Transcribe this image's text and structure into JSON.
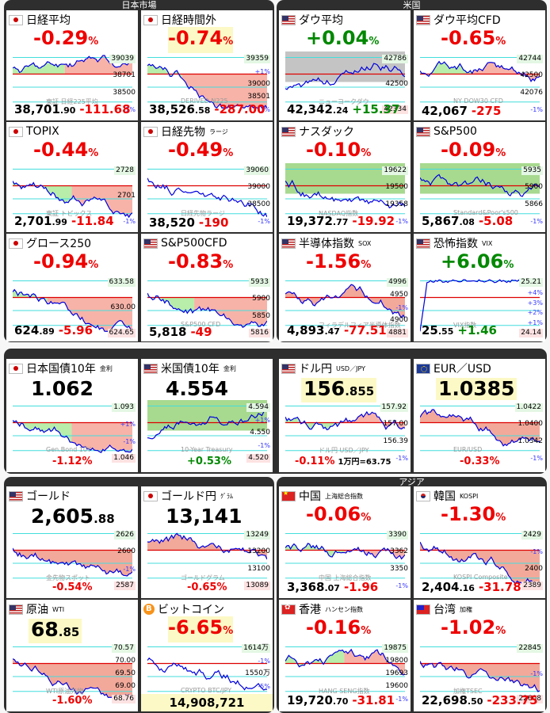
{
  "groups": [
    {
      "id": "japan-market",
      "title": "日本市場"
    },
    {
      "id": "us",
      "title": "米国"
    },
    {
      "id": "rates-fx",
      "title": ""
    },
    {
      "id": "commodities",
      "title": ""
    },
    {
      "id": "asia",
      "title": "アジア"
    }
  ],
  "tiles": {
    "nikkei": {
      "name": "日経平均",
      "flag": "jp",
      "pct": "-0.29",
      "price_main": "38,701",
      "price_dec": ".90",
      "change": "-111.68",
      "ticks": [
        "39039",
        "38701",
        "38500",
        "-1%"
      ],
      "watermark": "東証 日経225平均"
    },
    "nikkei_night": {
      "name": "日経時間外",
      "flag": "jp",
      "pct": "-0.74",
      "price_main": "38,526",
      "price_dec": ".58",
      "change": "-287.00",
      "ticks": [
        "39359",
        "+1%",
        "39000",
        "38501",
        "-1%"
      ],
      "watermark": "DERIVED N225"
    },
    "dow": {
      "name": "ダウ平均",
      "flag": "us",
      "pct": "+0.04",
      "price_main": "42,342",
      "price_dec": ".24",
      "change": "+15.37",
      "ticks": [
        "42786",
        "42500",
        "42334"
      ],
      "watermark": "ニューヨークダウ"
    },
    "dow_cfd": {
      "name": "ダウ平均CFD",
      "flag": "us",
      "pct": "-0.65",
      "price_main": "42,067",
      "price_dec": "",
      "change": "-275",
      "ticks": [
        "42744",
        "42500",
        "42076",
        "-1%"
      ],
      "watermark": "NY DOW30 CFD"
    },
    "topix": {
      "name": "TOPIX",
      "flag": "jp",
      "pct": "-0.44",
      "price_main": "2,701",
      "price_dec": ".99",
      "change": "-11.84",
      "ticks": [
        "2728",
        "2701",
        "-1%"
      ],
      "watermark": "東証 トピックス"
    },
    "nikkei_futures": {
      "name": "日経先物",
      "sub": "ラージ",
      "flag": "jp",
      "pct": "-0.49",
      "price_main": "38,520",
      "price_dec": "",
      "change": "-190",
      "ticks": [
        "39060",
        "39000",
        "38500",
        "-1%"
      ],
      "watermark": "日経先物ラージ"
    },
    "nasdaq": {
      "name": "ナスダック",
      "flag": "us",
      "pct": "-0.10",
      "price_main": "19,372",
      "price_dec": ".77",
      "change": "-19.92",
      "ticks": [
        "19622",
        "19500",
        "19358",
        "-1%"
      ],
      "watermark": "NASDAQ指数"
    },
    "sp500": {
      "name": "S&P500",
      "flag": "us",
      "pct": "-0.09",
      "price_main": "5,867",
      "price_dec": ".08",
      "change": "-5.08",
      "ticks": [
        "5935",
        "5900",
        "5866",
        "-1%"
      ],
      "watermark": "Standard&Poor's500"
    },
    "growth250": {
      "name": "グロース250",
      "flag": "jp",
      "pct": "-0.94",
      "price_main": "624",
      "price_dec": ".89",
      "change": "-5.96",
      "ticks": [
        "633.58",
        "630.00",
        "624.65"
      ],
      "watermark": ""
    },
    "sp500_cfd": {
      "name": "S&P500CFD",
      "flag": "us",
      "pct": "-0.83",
      "price_main": "5,818",
      "price_dec": "",
      "change": "-49",
      "ticks": [
        "5933",
        "5900",
        "5850",
        "5816"
      ],
      "watermark": "S&P500 CFD"
    },
    "sox": {
      "name": "半導体指数",
      "sub": "SOX",
      "flag": "us",
      "pct": "-1.56",
      "price_main": "4,893",
      "price_dec": ".47",
      "change": "-77.51",
      "ticks": [
        "4996",
        "4950",
        "-1%",
        "4900",
        "4881"
      ],
      "watermark": "フィラデルフィア半導体指数"
    },
    "vix": {
      "name": "恐怖指数",
      "sub": "VIX",
      "flag": "us",
      "pct": "+6.06",
      "price_main": "25",
      "price_dec": ".55",
      "change": "+1.46",
      "ticks": [
        "25.21",
        "+4%",
        "+3%",
        "+2%",
        "+1%",
        "24.14"
      ],
      "watermark": "VIX指数"
    },
    "jgb10": {
      "name": "日本国債10年",
      "sub": "金利",
      "flag": "jp",
      "big": "1.062",
      "sub_pct": "-1.12",
      "ticks": [
        "1.093",
        "+1%",
        "-1%",
        "1.046"
      ],
      "watermark": "Gen.Bond 10Y"
    },
    "ust10": {
      "name": "米国債10年",
      "sub": "金利",
      "flag": "us",
      "big": "4.554",
      "sub_pct": "+0.53",
      "ticks": [
        "4.594",
        "+1%",
        "4.550",
        "-1%",
        "4.520"
      ],
      "watermark": "10-Year Treasury"
    },
    "usdjpy": {
      "name": "ドル円",
      "sub": "USD／JPY",
      "flag": "us",
      "big_main": "156",
      "big_dec": ".855",
      "sub_pct": "-0.11",
      "note": "1万円=63.75",
      "ticks": [
        "157.92",
        "157.00",
        "156.39",
        "-1%"
      ],
      "watermark": "ドル円 USD／JPY"
    },
    "eurusd": {
      "name": "EUR／USD",
      "flag": "eu",
      "big_main": "1.0385",
      "big_dec": "",
      "sub_pct": "-0.33",
      "ticks": [
        "1.0422",
        "1.0400",
        "1.0342",
        "-1%"
      ],
      "watermark": "EUR/USD"
    },
    "gold": {
      "name": "ゴールド",
      "flag": "us",
      "big_main": "2,605",
      "big_dec": ".88",
      "sub_pct": "-0.54",
      "ticks": [
        "2626",
        "2600",
        "-1%",
        "2587"
      ],
      "watermark": "金先物スポット"
    },
    "gold_jpy": {
      "name": "ゴールド円",
      "sub": "ｸﾞﾗﾑ",
      "flag": "jp",
      "big_main": "13,141",
      "big_dec": "",
      "sub_pct": "-0.65",
      "ticks": [
        "13249",
        "13200",
        "13100",
        "13089"
      ],
      "watermark": "ゴールドグラム"
    },
    "china": {
      "name": "中国",
      "sub": "上海総合指数",
      "flag": "cn",
      "pct": "-0.06",
      "price_main": "3,368",
      "price_dec": ".07",
      "change": "-1.96",
      "ticks": [
        "3390",
        "3362",
        "3350",
        "-1%"
      ],
      "watermark": "中国 上海総合指数"
    },
    "korea": {
      "name": "韓国",
      "sub": "KOSPI",
      "flag": "kr",
      "pct": "-1.30",
      "price_main": "2,404",
      "price_dec": ".16",
      "change": "-31.78",
      "ticks": [
        "2429",
        "-1%",
        "2400",
        "2389"
      ],
      "watermark": "KOSPI Composite"
    },
    "oil": {
      "name": "原油",
      "sub": "WTI",
      "flag": "us",
      "big_main": "68",
      "big_dec": ".85",
      "sub_pct": "-1.60",
      "ticks": [
        "70.57",
        "70.00",
        "69.50",
        "69.00",
        "68.76"
      ],
      "watermark": "WTI原油先物"
    },
    "bitcoin": {
      "name": "ビットコイン",
      "flag": "btc",
      "pct": "-6.65",
      "price_wide": "14,908,721",
      "ticks": [
        "1614万",
        "-1%",
        "1550万",
        "-5%",
        "1491万"
      ],
      "watermark": "CRYPTO BTC/JPY"
    },
    "hongkong": {
      "name": "香港",
      "sub": "ハンセン指数",
      "flag": "hk",
      "pct": "-0.16",
      "price_main": "19,720",
      "price_dec": ".70",
      "change": "-31.81",
      "ticks": [
        "19875",
        "19800",
        "19693",
        "19600",
        "-1%"
      ],
      "watermark": "HANG SENG指数"
    },
    "taiwan": {
      "name": "台湾",
      "sub": "加権",
      "flag": "tw",
      "pct": "-1.02",
      "price_main": "22,698",
      "price_dec": ".50",
      "change": "-233.75",
      "ticks": [
        "22845",
        "-1%",
        "22608"
      ],
      "watermark": "加権TSEC"
    }
  },
  "colors": {
    "down": "#e00000",
    "up": "#008800",
    "panel": "#2e2e2e",
    "green_fill": "#b3ecab",
    "red_fill": "#f7b3a8",
    "line": "#0000dd"
  }
}
